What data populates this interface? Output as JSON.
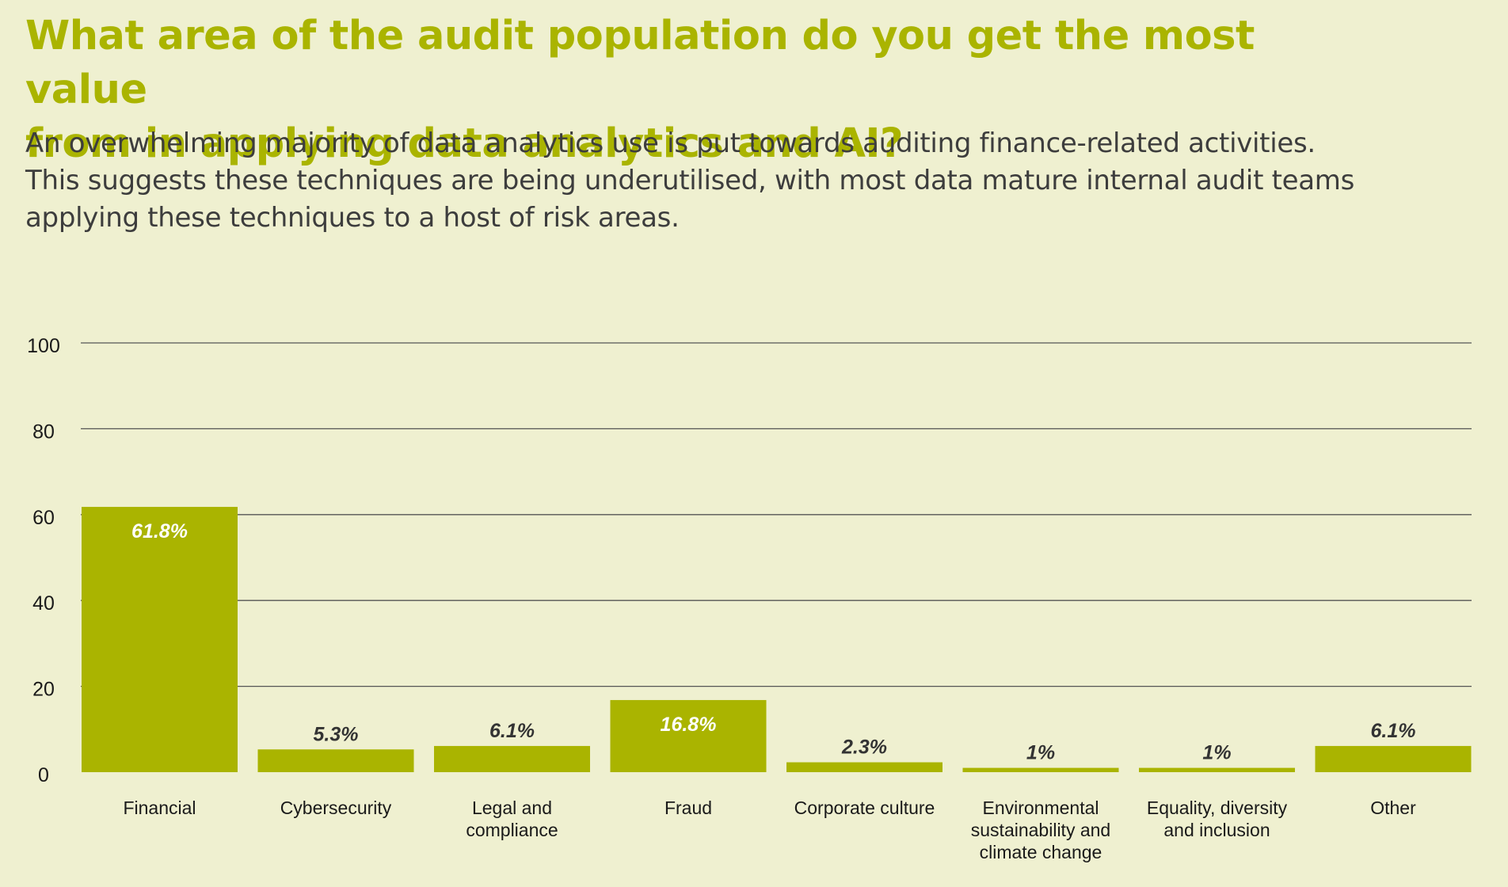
{
  "header": {
    "title_lines": [
      "What area of the audit population do you get the most value",
      "from in applying data analytics and AI?"
    ],
    "subtitle_lines": [
      "An overwhelming majority of data analytics use is put towards auditing finance-related activities.",
      "This suggests these techniques are being underutilised, with most data mature internal audit teams",
      "applying these techniques to a host of risk areas."
    ]
  },
  "colors": {
    "bar": "#aab400",
    "title": "#aab400",
    "background": "#eff0d0",
    "grid": "#555555",
    "label_inside": "#ffffff",
    "label_outside": "#333333"
  },
  "chart_data": {
    "type": "bar",
    "title": "",
    "xlabel": "",
    "ylabel": "",
    "ylim": [
      0,
      100
    ],
    "yticks": [
      0,
      20,
      40,
      60,
      80,
      100
    ],
    "grid": true,
    "categories": [
      [
        "Financial"
      ],
      [
        "Cybersecurity"
      ],
      [
        "Legal and",
        "compliance"
      ],
      [
        "Fraud"
      ],
      [
        "Corporate culture"
      ],
      [
        "Environmental",
        "sustainability and",
        "climate change"
      ],
      [
        "Equality, diversity",
        "and inclusion"
      ],
      [
        "Other"
      ]
    ],
    "values": [
      61.8,
      5.3,
      6.1,
      16.8,
      2.3,
      1,
      1,
      6.1
    ],
    "value_labels": [
      "61.8%",
      "5.3%",
      "6.1%",
      "16.8%",
      "2.3%",
      "1%",
      "1%",
      "6.1%"
    ],
    "label_inside": [
      true,
      false,
      false,
      true,
      false,
      false,
      false,
      false
    ]
  }
}
